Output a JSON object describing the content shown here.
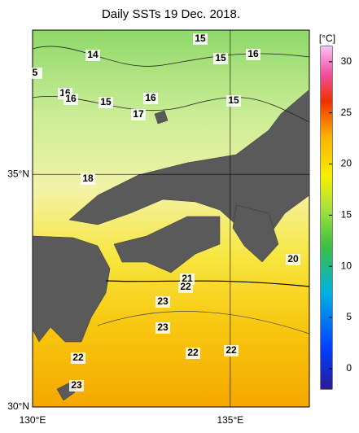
{
  "title": "Daily SSTs 19 Dec. 2018.",
  "map": {
    "lonlim": [
      130,
      137
    ],
    "latlim": [
      30,
      38.1
    ],
    "lonticks": [
      {
        "value": 130,
        "label": "130°E"
      },
      {
        "value": 135,
        "label": "135°E"
      }
    ],
    "latticks": [
      {
        "value": 30,
        "label": "30°N"
      },
      {
        "value": 35,
        "label": "35°N"
      }
    ],
    "contour_labels": [
      "15",
      "15",
      "16",
      "14",
      "5",
      "16",
      "16",
      "15",
      "16",
      "15",
      "17",
      "18",
      "20",
      "21",
      "22",
      "23",
      "23",
      "22",
      "22",
      "22",
      "23"
    ]
  },
  "colorbar": {
    "label": "[°C]",
    "lim": [
      -2,
      31.5
    ],
    "ticks": [
      0,
      5,
      10,
      15,
      20,
      25,
      30
    ]
  }
}
